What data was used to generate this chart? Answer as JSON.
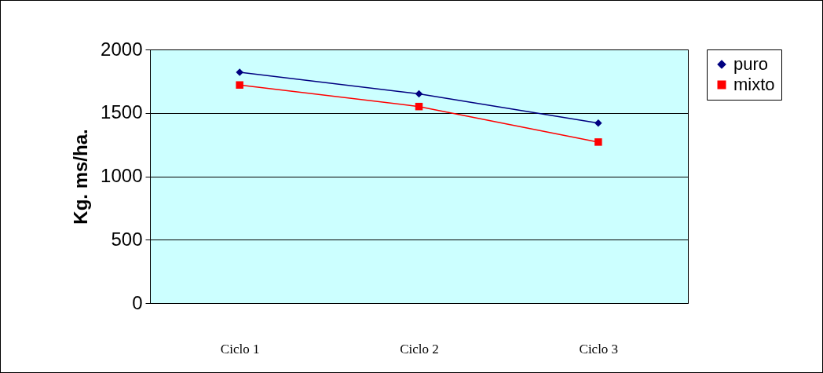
{
  "chart_data": {
    "type": "line",
    "ylabel": "Kg. ms/ha.",
    "categories": [
      "Ciclo 1",
      "Ciclo 2",
      "Ciclo 3"
    ],
    "series": [
      {
        "name": "puro",
        "color": "#000080",
        "marker": "diamond",
        "values": [
          1820,
          1650,
          1420
        ]
      },
      {
        "name": "mixto",
        "color": "#ff0000",
        "marker": "square",
        "values": [
          1720,
          1550,
          1270
        ]
      }
    ],
    "ylim": [
      0,
      2000
    ],
    "yticks": [
      0,
      500,
      1000,
      1500,
      2000
    ],
    "grid": "y",
    "legend": "right"
  }
}
